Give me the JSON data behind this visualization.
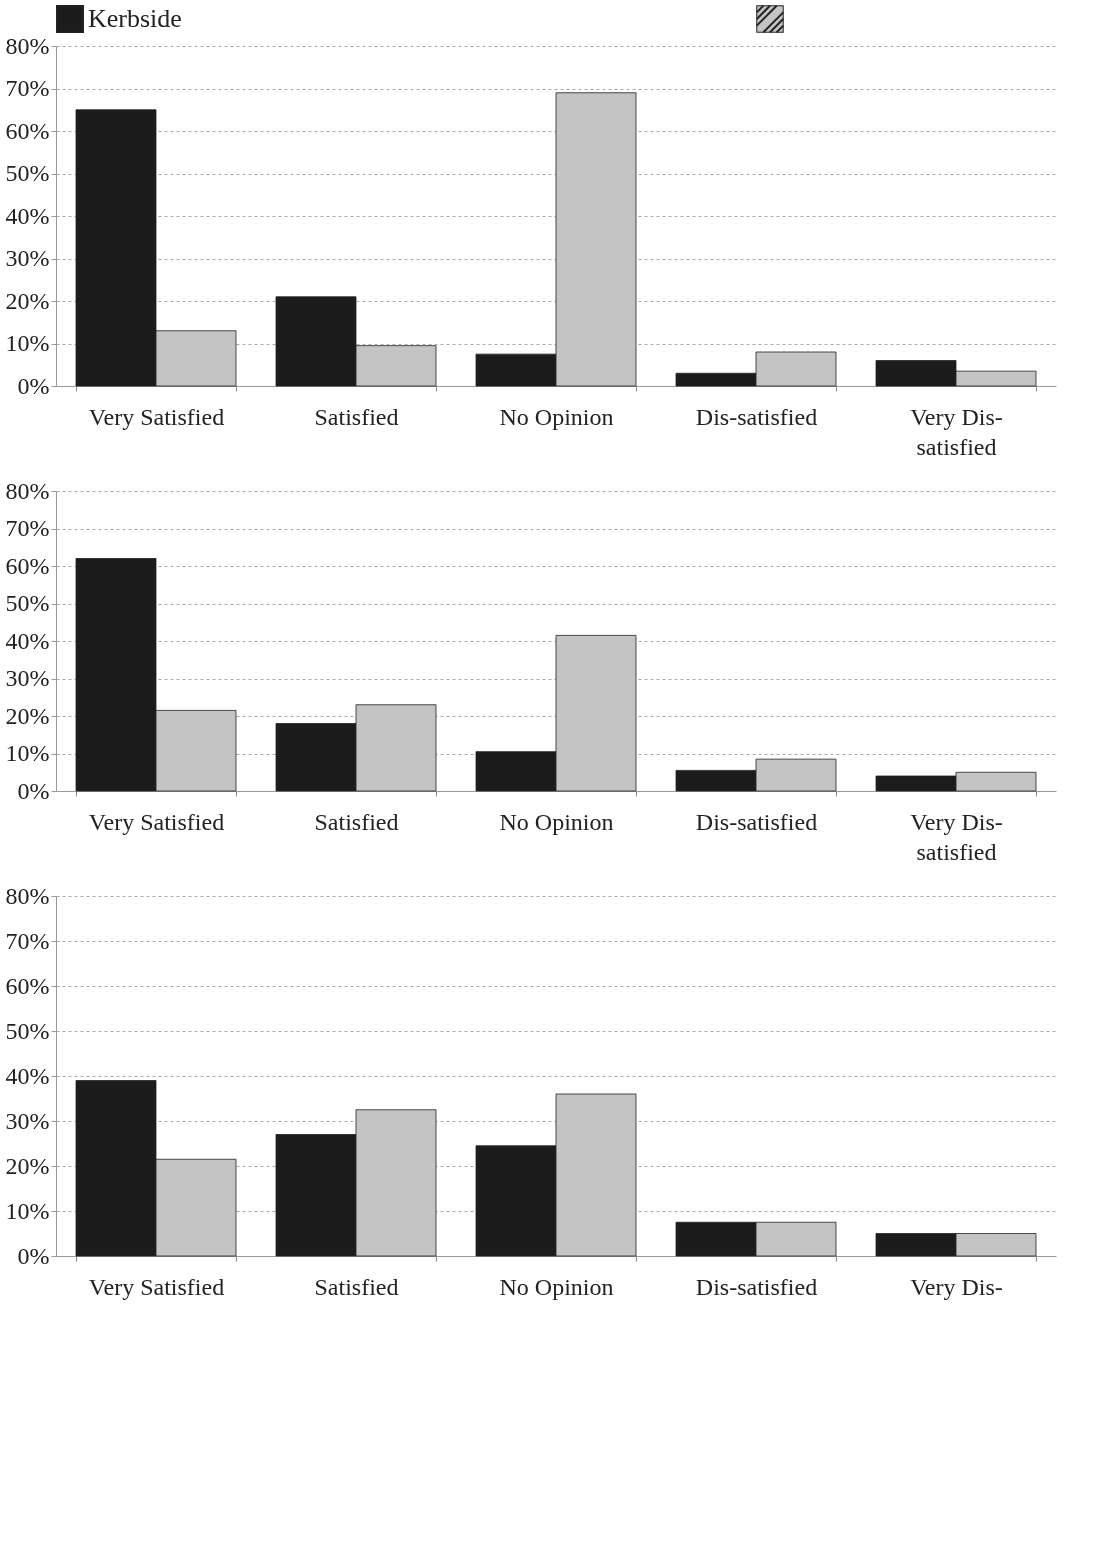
{
  "chart_data": [
    {
      "type": "bar",
      "categories": [
        "Very Satisfied",
        "Satisfied",
        "No Opinion",
        "Dis-satisfied",
        "Very Dis-satisfied"
      ],
      "series": [
        {
          "name": "Kerbside",
          "color": "#1c1c1c",
          "values": [
            65,
            21,
            7.5,
            3,
            6
          ]
        },
        {
          "color": "#c4c4c4",
          "values": [
            13,
            9.5,
            69,
            8,
            3.5
          ]
        }
      ],
      "ylim": [
        0,
        80
      ],
      "yticks": [
        {
          "value": 0,
          "label": "0%"
        },
        {
          "value": 10,
          "label": "10%"
        },
        {
          "value": 20,
          "label": "20%"
        },
        {
          "value": 30,
          "label": "30%"
        },
        {
          "value": 40,
          "label": "40%"
        },
        {
          "value": 50,
          "label": "50%"
        },
        {
          "value": 60,
          "label": "60%"
        },
        {
          "value": 70,
          "label": "70%"
        },
        {
          "value": 80,
          "label": "80%"
        }
      ],
      "grid": "y",
      "legend": "top"
    },
    {
      "type": "bar",
      "categories": [
        "Very Satisfied",
        "Satisfied",
        "No Opinion",
        "Dis-satisfied",
        "Very Dis-satisfied"
      ],
      "series": [
        {
          "color": "#1c1c1c",
          "values": [
            62,
            18,
            10.5,
            5.5,
            4
          ]
        },
        {
          "color": "#c4c4c4",
          "values": [
            21.5,
            23,
            41.5,
            8.5,
            5
          ]
        }
      ],
      "ylim": [
        0,
        80
      ],
      "yticks": [
        {
          "value": 0,
          "label": "0%"
        },
        {
          "value": 10,
          "label": "10%"
        },
        {
          "value": 20,
          "label": "20%"
        },
        {
          "value": 30,
          "label": "30%"
        },
        {
          "value": 40,
          "label": "40%"
        },
        {
          "value": 50,
          "label": "50%"
        },
        {
          "value": 60,
          "label": "60%"
        },
        {
          "value": 70,
          "label": "70%"
        },
        {
          "value": 80,
          "label": "80%"
        }
      ],
      "grid": "y"
    },
    {
      "type": "bar",
      "categories": [
        "Very Satisfied",
        "Satisfied",
        "No Opinion",
        "Dis-satisfied",
        "Very Dis-"
      ],
      "series": [
        {
          "color": "#1c1c1c",
          "values": [
            39,
            27,
            24.5,
            7.5,
            5
          ]
        },
        {
          "color": "#c4c4c4",
          "values": [
            21.5,
            32.5,
            36,
            7.5,
            5
          ]
        }
      ],
      "ylim": [
        0,
        80
      ],
      "yticks": [
        {
          "value": 0,
          "label": "0%"
        },
        {
          "value": 10,
          "label": "10%"
        },
        {
          "value": 20,
          "label": "20%"
        },
        {
          "value": 30,
          "label": "30%"
        },
        {
          "value": 40,
          "label": "40%"
        },
        {
          "value": 50,
          "label": "50%"
        },
        {
          "value": 60,
          "label": "60%"
        },
        {
          "value": 70,
          "label": "70%"
        },
        {
          "value": 80,
          "label": "80%"
        }
      ],
      "grid": "y"
    }
  ]
}
